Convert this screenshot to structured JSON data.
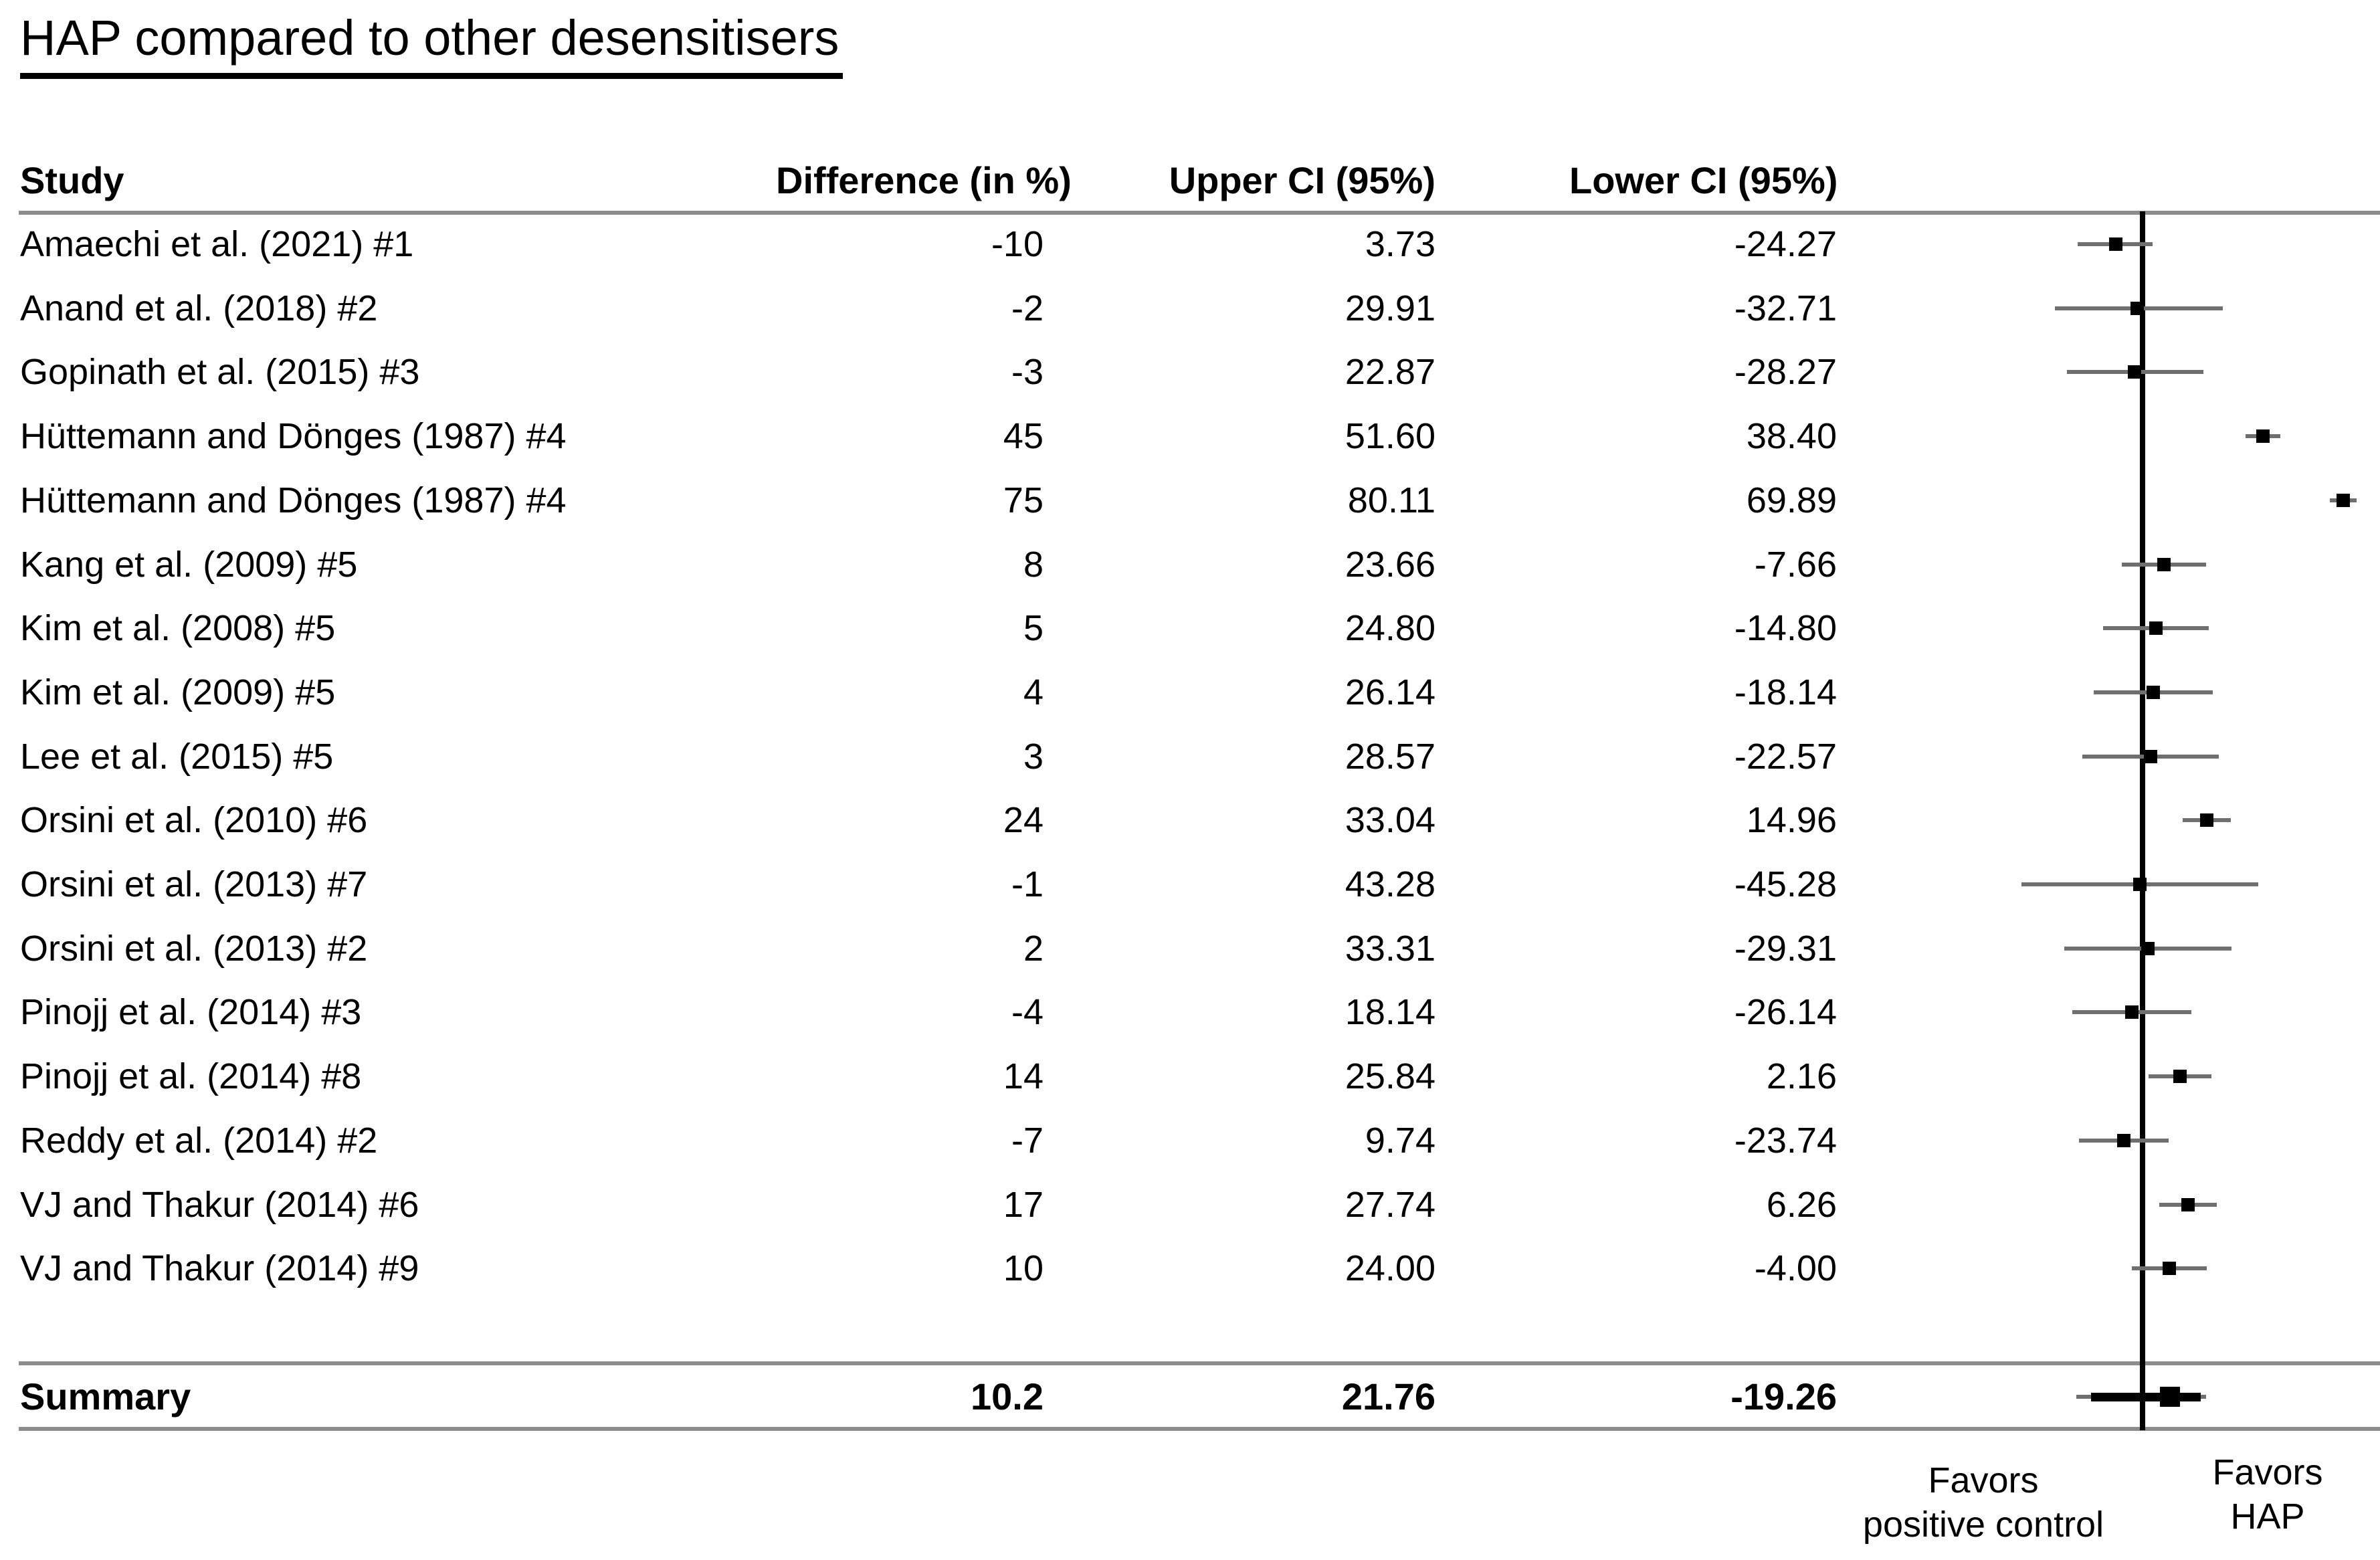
{
  "title": "HAP compared to other desensitisers",
  "columns": {
    "study": "Study",
    "difference": "Difference (in %)",
    "upper": "Upper CI (95%)",
    "lower": "Lower CI (95%)"
  },
  "chart_data": {
    "type": "forest",
    "title": "HAP compared to other desensitisers",
    "xlim": [
      -52,
      88
    ],
    "zero_line": 0,
    "grid": "off",
    "studies": [
      {
        "label": "Amaechi et al. (2021) #1",
        "difference": -10,
        "difference_label": "-10",
        "upper": 3.73,
        "upper_label": "3.73",
        "lower": -24.27,
        "lower_label": "-24.27"
      },
      {
        "label": "Anand et al. (2018) #2",
        "difference": -2,
        "difference_label": "-2",
        "upper": 29.91,
        "upper_label": "29.91",
        "lower": -32.71,
        "lower_label": "-32.71"
      },
      {
        "label": "Gopinath et al. (2015) #3",
        "difference": -3,
        "difference_label": "-3",
        "upper": 22.87,
        "upper_label": "22.87",
        "lower": -28.27,
        "lower_label": "-28.27"
      },
      {
        "label": "Hüttemann and Dönges (1987) #4",
        "difference": 45,
        "difference_label": "45",
        "upper": 51.6,
        "upper_label": "51.60",
        "lower": 38.4,
        "lower_label": "38.40"
      },
      {
        "label": "Hüttemann and Dönges (1987) #4",
        "difference": 75,
        "difference_label": "75",
        "upper": 80.11,
        "upper_label": "80.11",
        "lower": 69.89,
        "lower_label": "69.89"
      },
      {
        "label": "Kang et al. (2009) #5",
        "difference": 8,
        "difference_label": "8",
        "upper": 23.66,
        "upper_label": "23.66",
        "lower": -7.66,
        "lower_label": "-7.66"
      },
      {
        "label": "Kim et al. (2008) #5",
        "difference": 5,
        "difference_label": "5",
        "upper": 24.8,
        "upper_label": "24.80",
        "lower": -14.8,
        "lower_label": "-14.80"
      },
      {
        "label": "Kim et al. (2009) #5",
        "difference": 4,
        "difference_label": "4",
        "upper": 26.14,
        "upper_label": "26.14",
        "lower": -18.14,
        "lower_label": "-18.14"
      },
      {
        "label": "Lee et al. (2015) #5",
        "difference": 3,
        "difference_label": "3",
        "upper": 28.57,
        "upper_label": "28.57",
        "lower": -22.57,
        "lower_label": "-22.57"
      },
      {
        "label": "Orsini et al. (2010) #6",
        "difference": 24,
        "difference_label": "24",
        "upper": 33.04,
        "upper_label": "33.04",
        "lower": 14.96,
        "lower_label": "14.96"
      },
      {
        "label": "Orsini et al. (2013) #7",
        "difference": -1,
        "difference_label": "-1",
        "upper": 43.28,
        "upper_label": "43.28",
        "lower": -45.28,
        "lower_label": "-45.28"
      },
      {
        "label": "Orsini et al. (2013) #2",
        "difference": 2,
        "difference_label": "2",
        "upper": 33.31,
        "upper_label": "33.31",
        "lower": -29.31,
        "lower_label": "-29.31"
      },
      {
        "label": "Pinojj et al. (2014) #3",
        "difference": -4,
        "difference_label": "-4",
        "upper": 18.14,
        "upper_label": "18.14",
        "lower": -26.14,
        "lower_label": "-26.14"
      },
      {
        "label": "Pinojj et al. (2014) #8",
        "difference": 14,
        "difference_label": "14",
        "upper": 25.84,
        "upper_label": "25.84",
        "lower": 2.16,
        "lower_label": "2.16"
      },
      {
        "label": "Reddy et al. (2014) #2",
        "difference": -7,
        "difference_label": "-7",
        "upper": 9.74,
        "upper_label": "9.74",
        "lower": -23.74,
        "lower_label": "-23.74"
      },
      {
        "label": "VJ and Thakur (2014) #6",
        "difference": 17,
        "difference_label": "17",
        "upper": 27.74,
        "upper_label": "27.74",
        "lower": 6.26,
        "lower_label": "6.26"
      },
      {
        "label": "VJ and Thakur (2014) #9",
        "difference": 10,
        "difference_label": "10",
        "upper": 24.0,
        "upper_label": "24.00",
        "lower": -4.0,
        "lower_label": "-4.00"
      }
    ],
    "summary": {
      "label": "Summary",
      "difference": 10.2,
      "difference_label": "10.2",
      "upper": 21.76,
      "upper_label": "21.76",
      "lower": -19.26,
      "lower_label": "-19.26"
    },
    "annotations": {
      "favors_left": [
        "Favors",
        "positive control"
      ],
      "favors_right": [
        "Favors",
        "HAP"
      ]
    },
    "style": {
      "marker_color": "#000000",
      "ci_line_color": "#6f6f6f",
      "rule_color": "#8c8c8c"
    }
  }
}
